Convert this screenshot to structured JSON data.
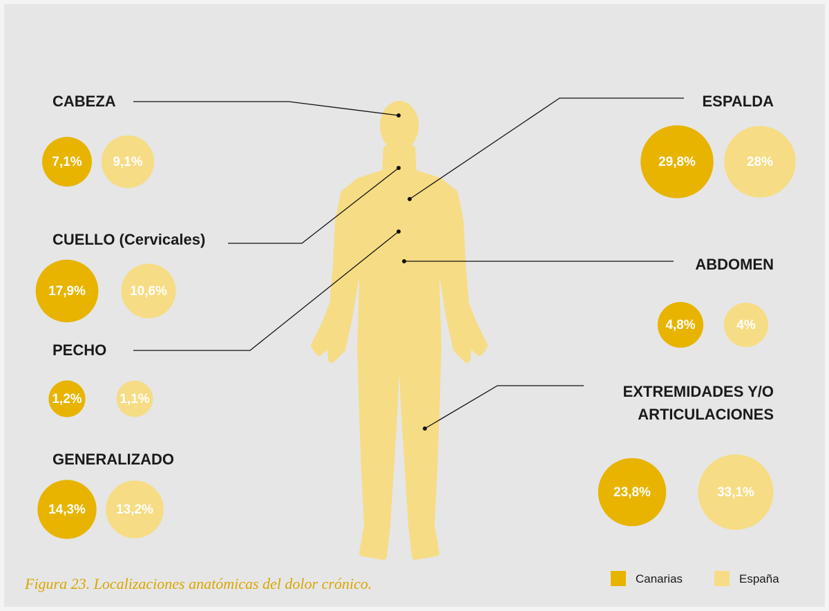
{
  "chart_data": {
    "type": "bubble",
    "categories": [
      "CABEZA",
      "CUELLO (Cervicales)",
      "PECHO",
      "GENERALIZADO",
      "ESPALDA",
      "ABDOMEN",
      "EXTREMIDADES Y/O ARTICULACIONES"
    ],
    "series": [
      {
        "name": "Canarias",
        "color": "#e8b400",
        "values": [
          7.1,
          17.9,
          1.2,
          14.3,
          29.8,
          4.8,
          23.8
        ],
        "value_labels": [
          "7,1%",
          "17,9%",
          "1,2%",
          "14,3%",
          "29,8%",
          "4,8%",
          "23,8%"
        ]
      },
      {
        "name": "España",
        "color": "#f6dc84",
        "values": [
          9.1,
          10.6,
          1.1,
          13.2,
          28,
          4,
          33.1
        ],
        "value_labels": [
          "9,1%",
          "10,6%",
          "1,1%",
          "13,2%",
          "28%",
          "4%",
          "33,1%"
        ]
      }
    ],
    "caption": "Figura 23. Localizaciones anatómicas del dolor crónico."
  }
}
